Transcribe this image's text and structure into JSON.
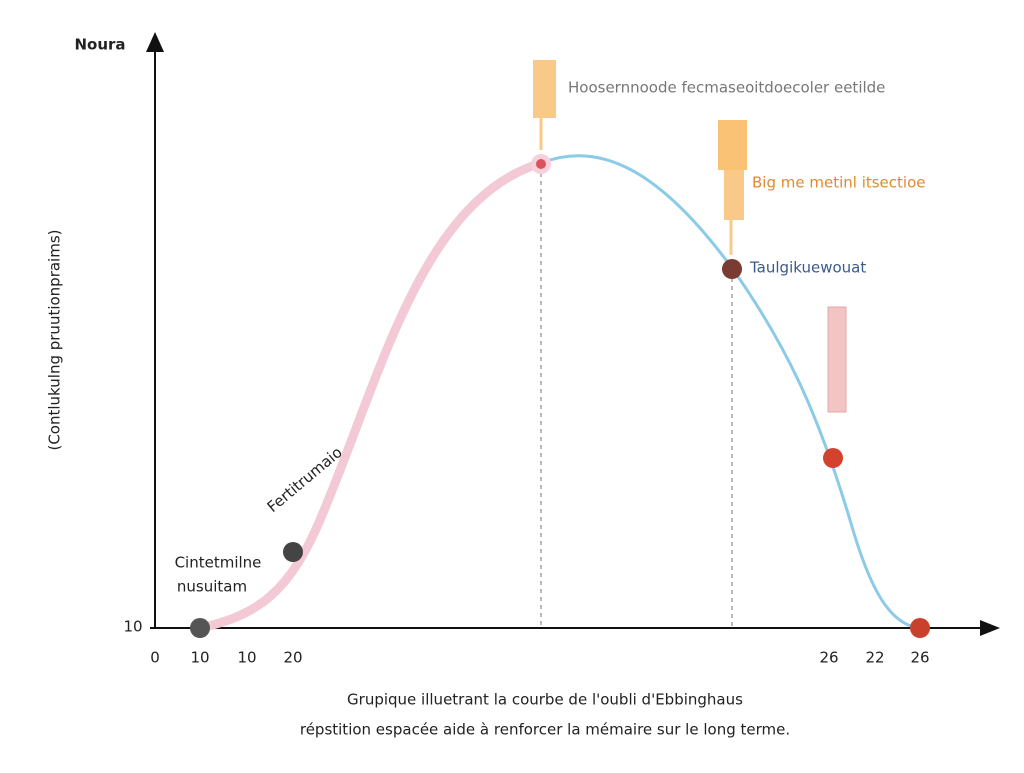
{
  "y_axis": {
    "title": "(Contlukulng pruutionpraims)",
    "top_label": "Noura",
    "tick": "10"
  },
  "x_axis": {
    "ticks": [
      "0",
      "10",
      "10",
      "20",
      "26",
      "22",
      "26"
    ]
  },
  "annotations": {
    "top": "Hoosernnoode fecmaseoitdoecoler eetilde",
    "orange": "Big me metinl itsectioe",
    "blue": "Taulgikuewouat",
    "rising": "Fertitrumaio",
    "start": [
      "Cintetmilne",
      "nusuitam"
    ]
  },
  "caption": [
    "Grupique illuetrant la courbe de l'oubli d'Ebbinghaus",
    "répstition espacée aide à renforcer la mémaire sur le long terme."
  ]
}
